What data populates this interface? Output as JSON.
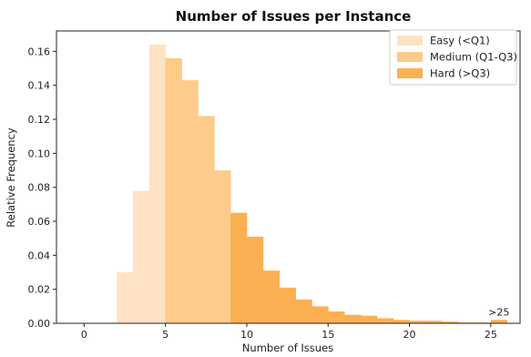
{
  "chart_data": {
    "type": "bar",
    "title": "Number of Issues per Instance",
    "xlabel": "Number of Issues",
    "ylabel": "Relative Frequency",
    "xlim": [
      -1.7,
      26.8
    ],
    "ylim": [
      0,
      0.172
    ],
    "xticks": [
      0,
      5,
      10,
      15,
      20,
      25
    ],
    "yticks": [
      0.0,
      0.02,
      0.04,
      0.06,
      0.08,
      0.1,
      0.12,
      0.14,
      0.16
    ],
    "ytick_labels": [
      "0.00",
      "0.02",
      "0.04",
      "0.06",
      "0.08",
      "0.10",
      "0.12",
      "0.14",
      "0.16"
    ],
    "bin_width": 1,
    "legend_position": "top-right",
    "series": [
      {
        "name": "Easy (<Q1)",
        "color": "#fde3c4",
        "bins": [
          {
            "x": 2,
            "value": 0.03
          },
          {
            "x": 3,
            "value": 0.078
          },
          {
            "x": 4,
            "value": 0.164
          }
        ]
      },
      {
        "name": "Medium (Q1-Q3)",
        "color": "#fdcb8a",
        "bins": [
          {
            "x": 5,
            "value": 0.156
          },
          {
            "x": 6,
            "value": 0.143
          },
          {
            "x": 7,
            "value": 0.122
          },
          {
            "x": 8,
            "value": 0.09
          }
        ]
      },
      {
        "name": "Hard (>Q3)",
        "color": "#fbb052",
        "bins": [
          {
            "x": 9,
            "value": 0.065
          },
          {
            "x": 10,
            "value": 0.051
          },
          {
            "x": 11,
            "value": 0.031
          },
          {
            "x": 12,
            "value": 0.021
          },
          {
            "x": 13,
            "value": 0.014
          },
          {
            "x": 14,
            "value": 0.01
          },
          {
            "x": 15,
            "value": 0.007
          },
          {
            "x": 16,
            "value": 0.005
          },
          {
            "x": 17,
            "value": 0.0045
          },
          {
            "x": 18,
            "value": 0.003
          },
          {
            "x": 19,
            "value": 0.002
          },
          {
            "x": 20,
            "value": 0.0015
          },
          {
            "x": 21,
            "value": 0.0015
          },
          {
            "x": 22,
            "value": 0.001
          },
          {
            "x": 23,
            "value": 0.0005
          },
          {
            "x": 24,
            "value": 0.0005
          },
          {
            "x": 25,
            "value": 0.002
          }
        ]
      }
    ],
    "annotations": [
      {
        "text": ">25",
        "x": 25.5,
        "y": 0.002
      }
    ]
  }
}
